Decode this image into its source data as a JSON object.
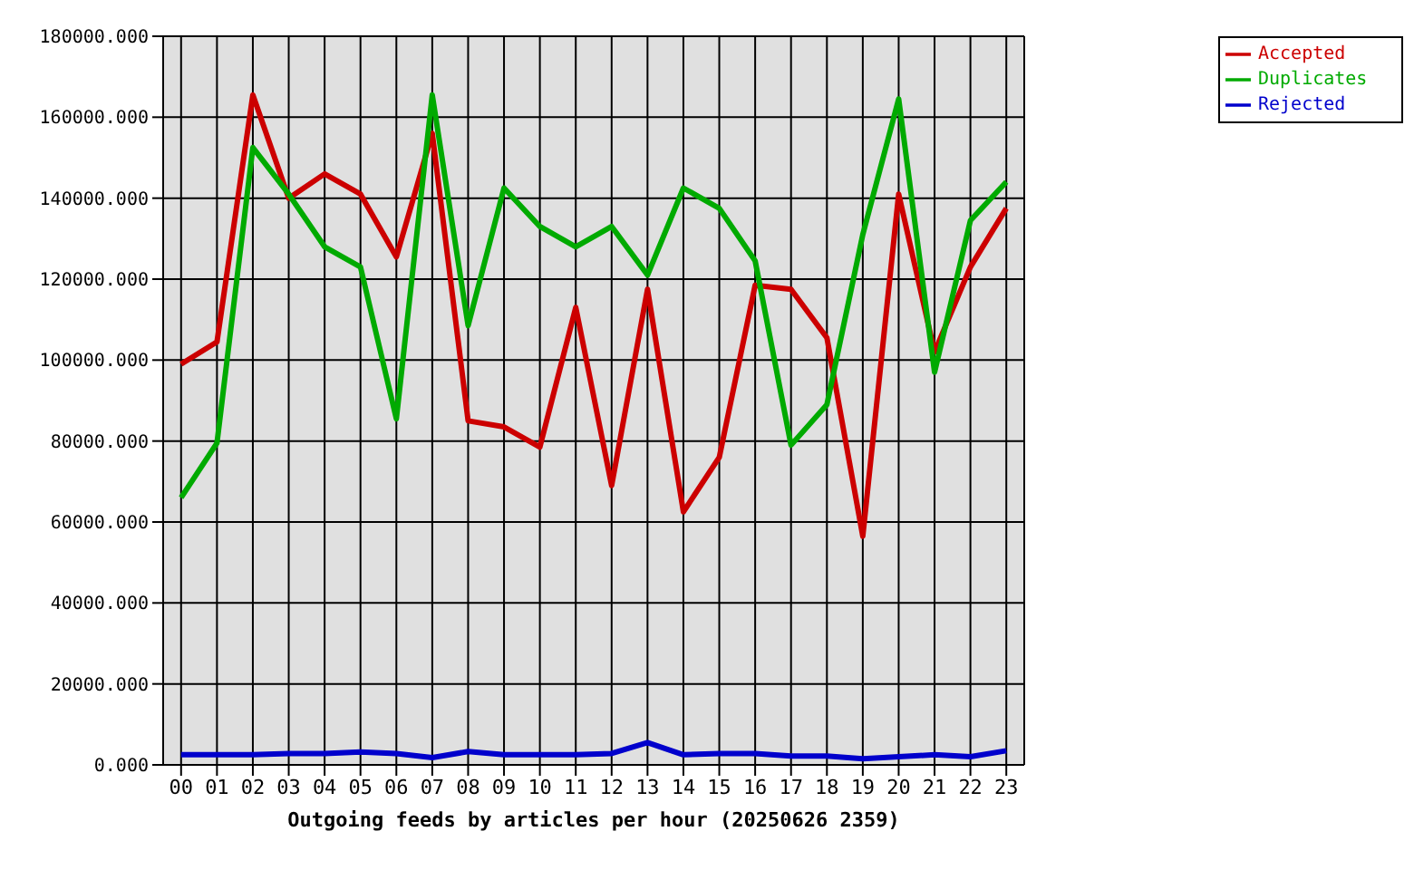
{
  "chart_data": {
    "type": "line",
    "xlabel": "Outgoing feeds by articles per hour (20250626 2359)",
    "categories": [
      "00",
      "01",
      "02",
      "03",
      "04",
      "05",
      "06",
      "07",
      "08",
      "09",
      "10",
      "11",
      "12",
      "13",
      "14",
      "15",
      "16",
      "17",
      "18",
      "19",
      "20",
      "21",
      "22",
      "23"
    ],
    "series": [
      {
        "name": "Accepted",
        "color": "#cc0000",
        "values": [
          99000,
          104500,
          165500,
          140000,
          146000,
          141000,
          125500,
          156000,
          85000,
          83500,
          78500,
          113000,
          69000,
          117500,
          62500,
          76000,
          118500,
          117500,
          105500,
          56500,
          141000,
          102000,
          123000,
          137500
        ]
      },
      {
        "name": "Duplicates",
        "color": "#00aa00",
        "values": [
          66000,
          79500,
          152500,
          141000,
          128000,
          123000,
          85500,
          165500,
          108500,
          142500,
          133000,
          128000,
          133000,
          121000,
          142500,
          137500,
          124500,
          79000,
          89000,
          131000,
          164500,
          97000,
          134500,
          144000
        ]
      },
      {
        "name": "Rejected",
        "color": "#0000cc",
        "values": [
          2500,
          2500,
          2500,
          2800,
          2800,
          3200,
          2800,
          1800,
          3300,
          2500,
          2500,
          2500,
          2800,
          5500,
          2500,
          2800,
          2800,
          2200,
          2200,
          1500,
          2000,
          2500,
          2000,
          3500
        ]
      }
    ],
    "ylim": [
      0,
      180000
    ],
    "yticks": [
      {
        "value": 0,
        "label": "0.000"
      },
      {
        "value": 20000,
        "label": "20000.000"
      },
      {
        "value": 40000,
        "label": "40000.000"
      },
      {
        "value": 60000,
        "label": "60000.000"
      },
      {
        "value": 80000,
        "label": "80000.000"
      },
      {
        "value": 100000,
        "label": "100000.000"
      },
      {
        "value": 120000,
        "label": "120000.000"
      },
      {
        "value": 140000,
        "label": "140000.000"
      },
      {
        "value": 160000,
        "label": "160000.000"
      },
      {
        "value": 180000,
        "label": "180000.000"
      }
    ],
    "grid": true,
    "legend": "top right",
    "line_style": "solid"
  }
}
